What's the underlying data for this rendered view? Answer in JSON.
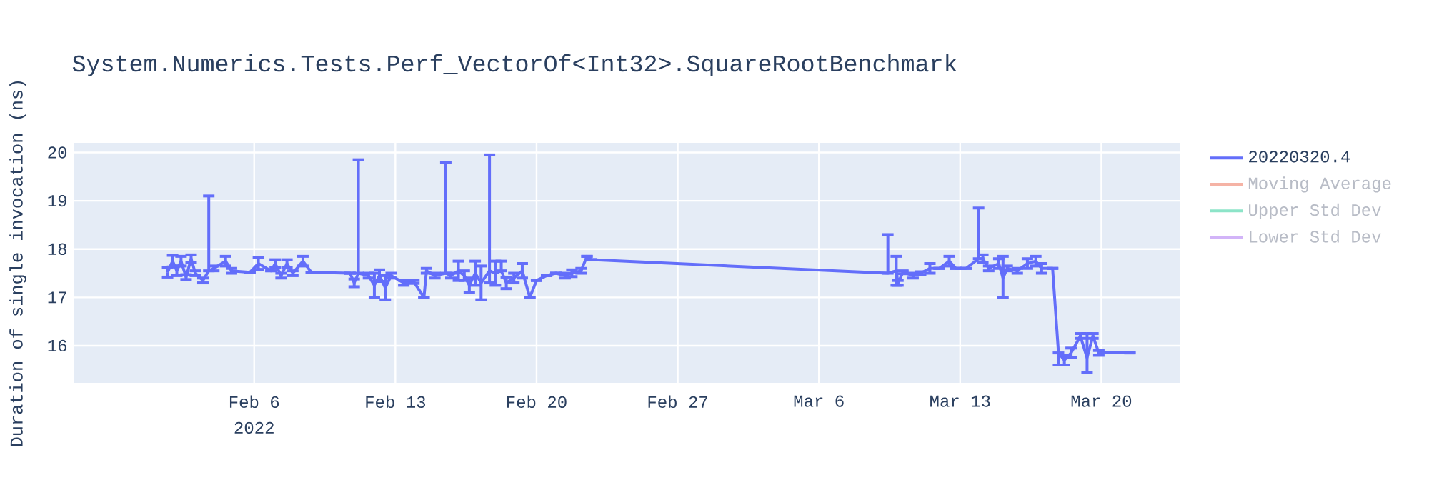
{
  "chart_data": {
    "type": "line",
    "title": "System.Numerics.Tests.Perf_VectorOf<Int32>.SquareRootBenchmark",
    "ylabel": "Duration of single invocation (ns)",
    "x": [
      "2022-02-01T17:00",
      "2022-02-01T23:00",
      "2022-02-02T04:00",
      "2022-02-02T09:00",
      "2022-02-02T15:00",
      "2022-02-02T21:00",
      "2022-02-03T02:00",
      "2022-02-03T11:00",
      "2022-02-03T18:00",
      "2022-02-04T00:00",
      "2022-02-04T14:00",
      "2022-02-04T21:00",
      "2022-02-05T19:00",
      "2022-02-06T05:00",
      "2022-02-06T20:00",
      "2022-02-07T01:00",
      "2022-02-07T08:00",
      "2022-02-07T15:00",
      "2022-02-07T22:00",
      "2022-02-08T10:00",
      "2022-02-08T20:00",
      "2022-02-10T18:00",
      "2022-02-10T23:00",
      "2022-02-11T04:00",
      "2022-02-11T16:00",
      "2022-02-11T23:00",
      "2022-02-12T05:00",
      "2022-02-12T12:00",
      "2022-02-12T19:00",
      "2022-02-13T10:00",
      "2022-02-13T22:00",
      "2022-02-14T10:00",
      "2022-02-14T13:00",
      "2022-02-14T23:00",
      "2022-02-15T12:00",
      "2022-02-15T18:00",
      "2022-02-16T03:00",
      "2022-02-16T10:00",
      "2022-02-16T16:00",
      "2022-02-16T23:00",
      "2022-02-17T06:00",
      "2022-02-17T16:00",
      "2022-02-17T23:00",
      "2022-02-18T06:00",
      "2022-02-18T12:00",
      "2022-02-18T21:00",
      "2022-02-19T07:00",
      "2022-02-19T16:00",
      "2022-02-20T00:00",
      "2022-02-20T12:00",
      "2022-02-20T23:00",
      "2022-02-21T10:00",
      "2022-02-21T18:00",
      "2022-02-22T05:00",
      "2022-02-22T12:00",
      "2022-02-22T17:00",
      "2022-03-09T10:00",
      "2022-03-09T20:00",
      "2022-03-09T22:00",
      "2022-03-10T04:00",
      "2022-03-10T16:00",
      "2022-03-11T01:00",
      "2022-03-11T12:00",
      "2022-03-11T23:00",
      "2022-03-12T11:00",
      "2022-03-12T19:00",
      "2022-03-13T07:00",
      "2022-03-13T22:00",
      "2022-03-14T03:00",
      "2022-03-14T10:00",
      "2022-03-14T22:00",
      "2022-03-15T03:00",
      "2022-03-15T08:00",
      "2022-03-15T20:00",
      "2022-03-16T08:00",
      "2022-03-16T18:00",
      "2022-03-17T01:00",
      "2022-03-17T14:00",
      "2022-03-17T21:00",
      "2022-03-18T04:00",
      "2022-03-18T12:00",
      "2022-03-18T23:00",
      "2022-03-19T07:00",
      "2022-03-19T14:00",
      "2022-03-19T21:00",
      "2022-03-21T10:00"
    ],
    "series": [
      {
        "name": "20220320.4",
        "color": "#636efa",
        "values": [
          17.52,
          17.75,
          17.55,
          17.75,
          17.42,
          17.8,
          17.5,
          17.35,
          17.55,
          17.6,
          17.75,
          17.55,
          17.52,
          17.7,
          17.55,
          17.7,
          17.45,
          17.7,
          17.5,
          17.75,
          17.52,
          17.5,
          17.3,
          17.5,
          17.45,
          17.25,
          17.45,
          17.2,
          17.45,
          17.3,
          17.32,
          17.0,
          17.55,
          17.45,
          17.5,
          17.45,
          17.55,
          17.45,
          17.25,
          17.5,
          17.3,
          17.55,
          17.5,
          17.55,
          17.3,
          17.4,
          17.55,
          17.0,
          17.35,
          17.45,
          17.5,
          17.45,
          17.5,
          17.55,
          17.85,
          17.78,
          17.5,
          17.55,
          17.3,
          17.52,
          17.45,
          17.5,
          17.6,
          17.6,
          17.75,
          17.6,
          17.6,
          17.8,
          17.8,
          17.6,
          17.7,
          17.4,
          17.6,
          17.55,
          17.7,
          17.75,
          17.6,
          17.6,
          15.85,
          15.7,
          15.85,
          16.2,
          15.75,
          16.2,
          15.85,
          15.85
        ],
        "errors": [
          0.1,
          0.12,
          0.1,
          0.1,
          0.05,
          0.08,
          0.05,
          0.05,
          [
            17.55,
            19.1
          ],
          0.05,
          0.1,
          0.05,
          null,
          0.12,
          null,
          0.08,
          0.05,
          0.08,
          0.05,
          0.1,
          null,
          null,
          0.08,
          [
            17.5,
            19.85
          ],
          0.05,
          0.25,
          0.12,
          0.25,
          0.05,
          0.05,
          0.03,
          null,
          0.05,
          0.05,
          [
            17.5,
            19.8
          ],
          0.05,
          0.2,
          0.1,
          0.15,
          0.25,
          0.35,
          [
            17.3,
            19.95
          ],
          0.25,
          [
            17.55,
            17.75
          ],
          0.12,
          0.1,
          0.15,
          null,
          null,
          null,
          null,
          0.05,
          0.07,
          0.05,
          null,
          null,
          [
            17.5,
            18.3
          ],
          0.3,
          0.05,
          0.03,
          0.05,
          0.03,
          0.1,
          null,
          0.1,
          null,
          null,
          [
            17.8,
            18.85
          ],
          0.08,
          0.05,
          0.1,
          [
            17.0,
            17.85
          ],
          0.05,
          0.05,
          0.1,
          0.1,
          0.1,
          null,
          [
            15.6,
            15.85
          ],
          0.1,
          0.1,
          0.05,
          [
            15.45,
            16.25
          ],
          0.05,
          0.05,
          null
        ]
      },
      {
        "name": "Moving Average",
        "color": "#f5b3a5",
        "values": [
          null,
          null,
          null,
          null,
          null,
          null,
          null,
          null,
          null,
          null,
          null,
          null,
          null,
          null,
          null,
          null,
          null,
          null,
          null,
          null,
          null,
          null,
          null,
          null,
          null,
          null,
          null,
          null,
          null,
          null,
          null,
          null,
          null,
          null,
          null,
          null,
          null,
          null,
          null,
          null,
          null,
          null,
          null,
          null,
          null,
          null,
          null,
          null,
          null,
          null,
          null,
          null,
          null,
          null,
          null,
          null,
          null,
          null,
          null,
          null,
          null,
          null,
          null,
          null,
          null,
          null,
          null,
          null,
          null,
          null,
          null,
          null,
          null,
          null,
          null,
          null,
          null,
          null,
          null,
          null,
          null,
          null,
          null,
          null,
          null,
          null
        ]
      },
      {
        "name": "Upper Std Dev",
        "color": "#8ce4c8",
        "values": [
          null,
          null,
          null,
          null,
          null,
          null,
          null,
          null,
          null,
          null,
          null,
          null,
          null,
          null,
          null,
          null,
          null,
          null,
          null,
          null,
          null,
          null,
          null,
          null,
          null,
          null,
          null,
          null,
          null,
          null,
          null,
          null,
          null,
          null,
          null,
          null,
          null,
          null,
          null,
          null,
          null,
          null,
          null,
          null,
          null,
          null,
          null,
          null,
          null,
          null,
          null,
          null,
          null,
          null,
          null,
          null,
          null,
          null,
          null,
          null,
          null,
          null,
          null,
          null,
          null,
          null,
          null,
          null,
          null,
          null,
          null,
          null,
          null,
          null,
          null,
          null,
          null,
          null,
          null,
          null,
          null,
          null,
          null,
          null,
          null,
          null
        ]
      },
      {
        "name": "Lower Std Dev",
        "color": "#d2b4f8",
        "values": [
          null,
          null,
          null,
          null,
          null,
          null,
          null,
          null,
          null,
          null,
          null,
          null,
          null,
          null,
          null,
          null,
          null,
          null,
          null,
          null,
          null,
          null,
          null,
          null,
          null,
          null,
          null,
          null,
          null,
          null,
          null,
          null,
          null,
          null,
          null,
          null,
          null,
          null,
          null,
          null,
          null,
          null,
          null,
          null,
          null,
          null,
          null,
          null,
          null,
          null,
          null,
          null,
          null,
          null,
          null,
          null,
          null,
          null,
          null,
          null,
          null,
          null,
          null,
          null,
          null,
          null,
          null,
          null,
          null,
          null,
          null,
          null,
          null,
          null,
          null,
          null,
          null,
          null,
          null,
          null,
          null,
          null,
          null,
          null,
          null,
          null
        ]
      }
    ],
    "xlim": [
      "2022-01-28T02:00",
      "2022-03-23T22:00"
    ],
    "xticks": [
      {
        "value": "2022-02-06",
        "label": "Feb 6"
      },
      {
        "value": "2022-02-13",
        "label": "Feb 13"
      },
      {
        "value": "2022-02-20",
        "label": "Feb 20"
      },
      {
        "value": "2022-02-27",
        "label": "Feb 27"
      },
      {
        "value": "2022-03-06",
        "label": "Mar 6"
      },
      {
        "value": "2022-03-13",
        "label": "Mar 13"
      },
      {
        "value": "2022-03-20",
        "label": "Mar 20"
      }
    ],
    "annotations": [
      "2022"
    ],
    "ylim": [
      15.23,
      20.2
    ],
    "yticks": [
      16,
      17,
      18,
      19,
      20
    ],
    "grid": true,
    "legend": "top right",
    "marker": "none",
    "line_style": "solid"
  }
}
